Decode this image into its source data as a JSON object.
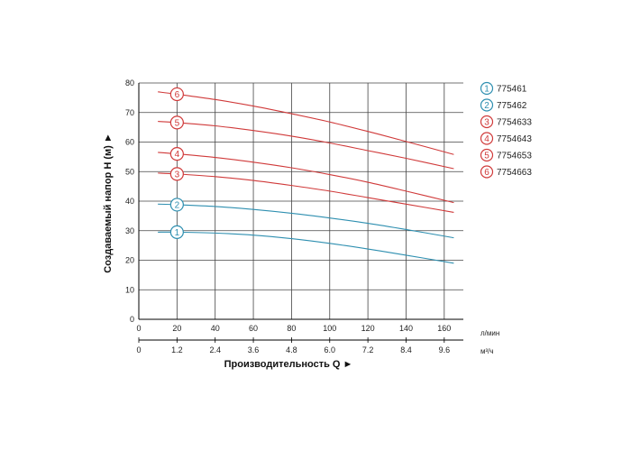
{
  "chart_data": {
    "type": "line",
    "xlabel": "Производительность Q ►",
    "ylabel": "Создаваемый напор H (м) ►",
    "x_unit": "л/мин",
    "x2_unit": "м³/ч",
    "xlim": [
      0,
      170
    ],
    "ylim": [
      0,
      80
    ],
    "x_ticks": [
      0,
      20,
      40,
      60,
      80,
      100,
      120,
      140,
      160
    ],
    "y_ticks": [
      0,
      10,
      20,
      30,
      40,
      50,
      60,
      70,
      80
    ],
    "x2_ticks": [
      "0",
      "1.2",
      "2.4",
      "3.6",
      "4.8",
      "6.0",
      "7.2",
      "8.4",
      "9.6"
    ],
    "grid": true,
    "legend_position": "right",
    "colors": {
      "blue": "#2e8fb0",
      "red": "#d03a3a"
    },
    "series": [
      {
        "name": "775461",
        "marker": "1",
        "color": "#2e8fb0",
        "x": [
          10,
          20,
          40,
          60,
          80,
          100,
          120,
          140,
          165
        ],
        "y": [
          29.5,
          29.5,
          29.2,
          28.5,
          27.3,
          25.7,
          23.8,
          21.7,
          19.0
        ]
      },
      {
        "name": "775462",
        "marker": "2",
        "color": "#2e8fb0",
        "x": [
          10,
          20,
          40,
          60,
          80,
          100,
          120,
          140,
          165
        ],
        "y": [
          39.0,
          38.8,
          38.2,
          37.2,
          35.9,
          34.3,
          32.5,
          30.4,
          27.6
        ]
      },
      {
        "name": "7754633",
        "marker": "3",
        "color": "#d03a3a",
        "x": [
          10,
          20,
          40,
          60,
          80,
          100,
          120,
          140,
          165
        ],
        "y": [
          49.5,
          49.2,
          48.3,
          47.0,
          45.3,
          43.4,
          41.2,
          39.0,
          36.2
        ]
      },
      {
        "name": "7754643",
        "marker": "4",
        "color": "#d03a3a",
        "x": [
          10,
          20,
          40,
          60,
          80,
          100,
          120,
          140,
          165
        ],
        "y": [
          56.5,
          56.0,
          54.8,
          53.2,
          51.3,
          49.0,
          46.4,
          43.4,
          39.5
        ]
      },
      {
        "name": "7754653",
        "marker": "5",
        "color": "#d03a3a",
        "x": [
          10,
          20,
          40,
          60,
          80,
          100,
          120,
          140,
          165
        ],
        "y": [
          67.0,
          66.6,
          65.5,
          63.9,
          62.0,
          59.7,
          57.1,
          54.5,
          51.0
        ]
      },
      {
        "name": "7754663",
        "marker": "6",
        "color": "#d03a3a",
        "x": [
          10,
          20,
          40,
          60,
          80,
          100,
          120,
          140,
          165
        ],
        "y": [
          77.0,
          76.2,
          74.4,
          72.2,
          69.6,
          66.8,
          63.6,
          60.2,
          55.8
        ]
      }
    ],
    "marker_x": 20
  }
}
